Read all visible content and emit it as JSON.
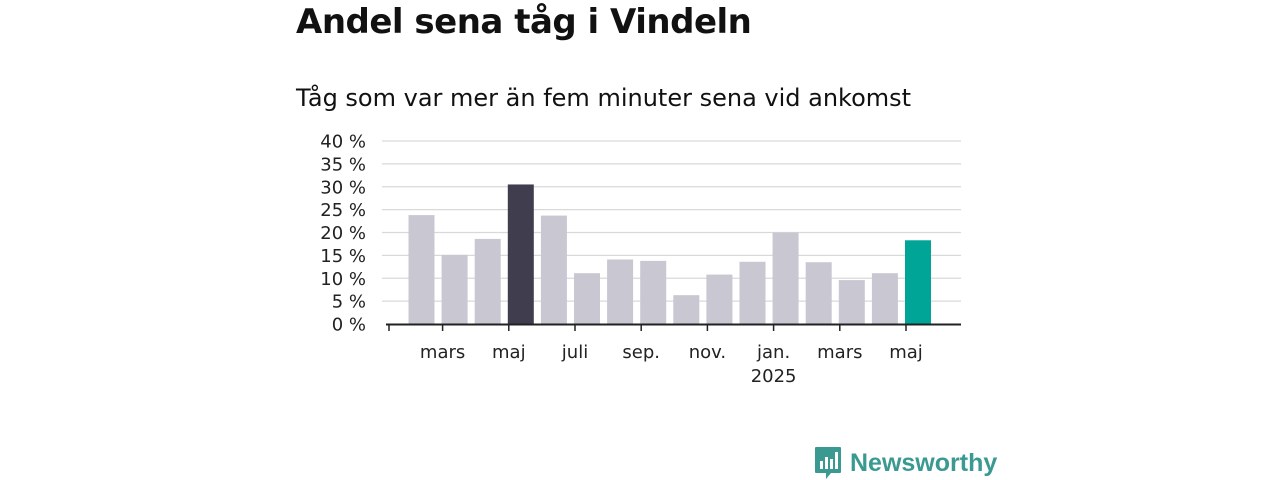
{
  "chart_data": {
    "type": "bar",
    "title": "Andel sena tåg i Vindeln",
    "subtitle": "Tåg som var mer än fem minuter sena vid ankomst",
    "xlabel": "",
    "ylabel": "",
    "ylim": [
      0,
      40
    ],
    "y_ticks": [
      "0 %",
      "5 %",
      "10 %",
      "15 %",
      "20 %",
      "25 %",
      "30 %",
      "35 %",
      "40 %"
    ],
    "x_tick_labels": [
      {
        "label": "mars",
        "year": ""
      },
      {
        "label": "maj",
        "year": ""
      },
      {
        "label": "juli",
        "year": ""
      },
      {
        "label": "sep.",
        "year": ""
      },
      {
        "label": "nov.",
        "year": ""
      },
      {
        "label": "jan.",
        "year": "2025"
      },
      {
        "label": "mars",
        "year": ""
      },
      {
        "label": "maj",
        "year": ""
      }
    ],
    "values": [
      23.8,
      15.1,
      18.6,
      30.5,
      23.7,
      11.1,
      14.1,
      13.8,
      6.3,
      10.8,
      13.6,
      20.0,
      13.5,
      9.6,
      11.1,
      18.3
    ],
    "colors": {
      "default": "#c8c7d2",
      "highlight_previous_year": "#403e4e",
      "highlight_current": "#00a598",
      "grid": "#d9d9d9",
      "axis": "#222222"
    },
    "highlight_indices": {
      "previous_year": 3,
      "current": 15
    },
    "grid": true,
    "legend": "none"
  },
  "brand": {
    "name": "Newsworthy",
    "color": "#3a9a92"
  }
}
